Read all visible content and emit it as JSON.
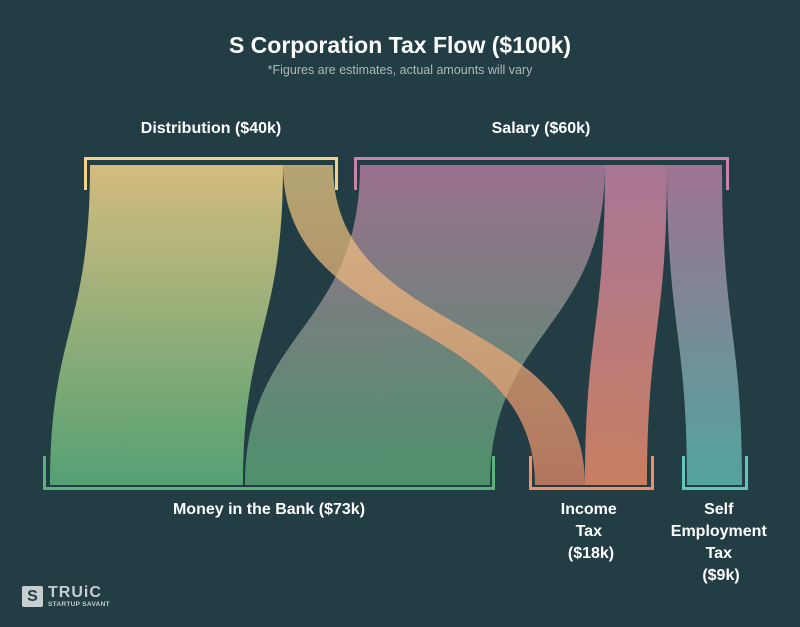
{
  "title": "S Corporation Tax Flow ($100k)",
  "subtitle": "*Figures are estimates, actual amounts will vary",
  "nodes": {
    "distribution": "Distribution ($40k)",
    "salary": "Salary ($60k)",
    "bank": "Money in the Bank ($73k)",
    "income_tax": [
      "Income",
      "Tax",
      "($18k)"
    ],
    "self_employment_tax": [
      "Self",
      "Employment",
      "Tax",
      "($9k)"
    ]
  },
  "colors": {
    "background": "#223d43",
    "distribution": "#f3d288",
    "salary": "#c984aa",
    "bank": "#5db27c",
    "income_tax": "#f28e6a",
    "self_employment_tax": "#62c6be"
  },
  "logo": {
    "mark": "S",
    "name": "TRUiC",
    "tagline": "STARTUP SAVANT"
  },
  "chart_data": {
    "type": "sankey",
    "units": "$k",
    "sources": [
      {
        "name": "Distribution",
        "value": 40
      },
      {
        "name": "Salary",
        "value": 60
      }
    ],
    "targets": [
      {
        "name": "Money in the Bank",
        "value": 73
      },
      {
        "name": "Income Tax",
        "value": 18
      },
      {
        "name": "Self Employment Tax",
        "value": 9
      }
    ],
    "links": [
      {
        "source": "Distribution",
        "target": "Money in the Bank",
        "value": 34
      },
      {
        "source": "Distribution",
        "target": "Income Tax",
        "value": 6
      },
      {
        "source": "Salary",
        "target": "Money in the Bank",
        "value": 39
      },
      {
        "source": "Salary",
        "target": "Income Tax",
        "value": 12
      },
      {
        "source": "Salary",
        "target": "Self Employment Tax",
        "value": 9
      }
    ]
  }
}
